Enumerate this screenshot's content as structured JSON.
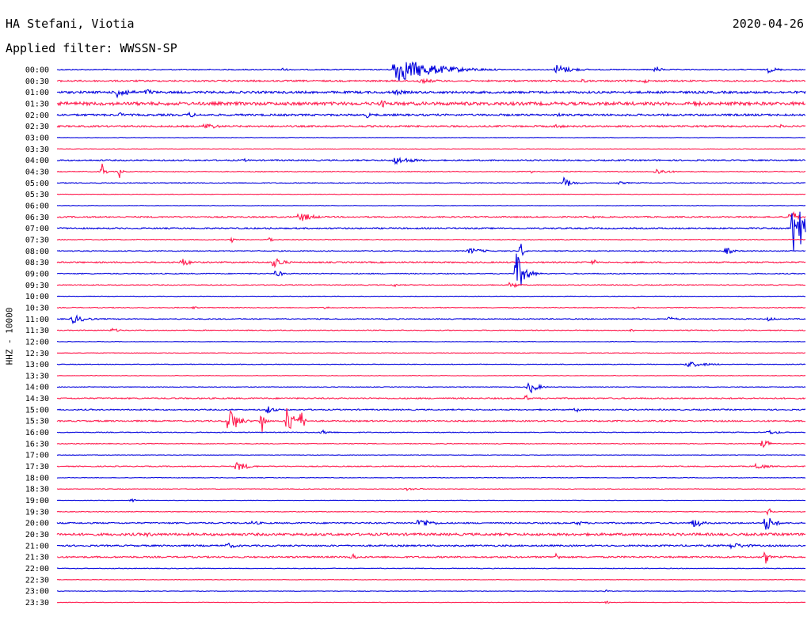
{
  "header": {
    "station": "HA Stefani, Viotia",
    "date": "2020-04-26",
    "filter": "Applied filter: WWSSN-SP"
  },
  "chart_data": {
    "type": "line",
    "title": "HA Stefani, Viotia",
    "ylabel": "HHZ - 10000",
    "row_colors": [
      "#0000dd",
      "#ff1a4d"
    ],
    "x_range_minutes": [
      0,
      30
    ],
    "rows": [
      {
        "label": "00:00",
        "noise": 0.6,
        "events": [
          {
            "t": 13.5,
            "a": 18,
            "d": 1.4
          },
          {
            "t": 20.0,
            "a": 7,
            "d": 0.6
          },
          {
            "t": 24.0,
            "a": 5,
            "d": 0.2
          },
          {
            "t": 28.5,
            "a": 4,
            "d": 0.4
          },
          {
            "t": 9.0,
            "a": 3,
            "d": 0.2
          }
        ]
      },
      {
        "label": "00:30",
        "noise": 1.0,
        "events": [
          {
            "t": 14.5,
            "a": 3,
            "d": 1.0
          },
          {
            "t": 21.0,
            "a": 3,
            "d": 0.3
          },
          {
            "t": 23.5,
            "a": 3,
            "d": 0.3
          }
        ]
      },
      {
        "label": "01:00",
        "noise": 1.4,
        "events": [
          {
            "t": 2.4,
            "a": 8,
            "d": 0.5
          },
          {
            "t": 3.6,
            "a": 5,
            "d": 0.3
          },
          {
            "t": 13.5,
            "a": 4,
            "d": 0.5
          }
        ]
      },
      {
        "label": "01:30",
        "noise": 2.0,
        "events": [
          {
            "t": 13.0,
            "a": 5,
            "d": 0.4
          },
          {
            "t": 25.5,
            "a": 4,
            "d": 0.5
          }
        ]
      },
      {
        "label": "02:00",
        "noise": 1.2,
        "events": [
          {
            "t": 2.5,
            "a": 4,
            "d": 0.2
          },
          {
            "t": 5.3,
            "a": 4,
            "d": 0.3
          },
          {
            "t": 12.4,
            "a": 4,
            "d": 0.3
          },
          {
            "t": 20.0,
            "a": 3,
            "d": 0.3
          }
        ]
      },
      {
        "label": "02:30",
        "noise": 1.0,
        "events": [
          {
            "t": 5.9,
            "a": 5,
            "d": 0.5
          },
          {
            "t": 20.0,
            "a": 3,
            "d": 0.4
          },
          {
            "t": 29.0,
            "a": 3,
            "d": 0.1
          }
        ]
      },
      {
        "label": "03:00",
        "noise": 0.3,
        "events": []
      },
      {
        "label": "03:30",
        "noise": 0.3,
        "events": []
      },
      {
        "label": "04:00",
        "noise": 0.8,
        "events": [
          {
            "t": 13.5,
            "a": 5,
            "d": 0.8
          },
          {
            "t": 7.5,
            "a": 2,
            "d": 0.3
          }
        ]
      },
      {
        "label": "04:30",
        "noise": 0.5,
        "events": [
          {
            "t": 1.8,
            "a": 14,
            "d": 0.1
          },
          {
            "t": 2.5,
            "a": 9,
            "d": 0.1
          },
          {
            "t": 24.0,
            "a": 4,
            "d": 0.5
          },
          {
            "t": 19.0,
            "a": 3,
            "d": 0.1
          }
        ]
      },
      {
        "label": "05:00",
        "noise": 0.5,
        "events": [
          {
            "t": 20.3,
            "a": 8,
            "d": 0.3
          },
          {
            "t": 22.5,
            "a": 2,
            "d": 0.4
          }
        ]
      },
      {
        "label": "05:30",
        "noise": 0.3,
        "events": []
      },
      {
        "label": "06:00",
        "noise": 0.3,
        "events": []
      },
      {
        "label": "06:30",
        "noise": 0.8,
        "events": [
          {
            "t": 9.7,
            "a": 7,
            "d": 0.5
          },
          {
            "t": 29.4,
            "a": 12,
            "d": 0.2
          },
          {
            "t": 21.5,
            "a": 2,
            "d": 0.1
          }
        ]
      },
      {
        "label": "07:00",
        "noise": 0.8,
        "events": [
          {
            "t": 29.5,
            "a": 40,
            "d": 0.5
          },
          {
            "t": 8.5,
            "a": 2,
            "d": 0.1
          }
        ]
      },
      {
        "label": "07:30",
        "noise": 0.5,
        "events": [
          {
            "t": 7.0,
            "a": 4,
            "d": 0.1
          },
          {
            "t": 8.5,
            "a": 6,
            "d": 0.1
          }
        ]
      },
      {
        "label": "08:00",
        "noise": 0.6,
        "events": [
          {
            "t": 16.5,
            "a": 4,
            "d": 0.6
          },
          {
            "t": 18.6,
            "a": 12,
            "d": 0.1
          },
          {
            "t": 26.8,
            "a": 5,
            "d": 0.3
          }
        ]
      },
      {
        "label": "08:30",
        "noise": 0.8,
        "events": [
          {
            "t": 5.0,
            "a": 6,
            "d": 0.3
          },
          {
            "t": 8.7,
            "a": 9,
            "d": 0.3
          },
          {
            "t": 21.5,
            "a": 5,
            "d": 0.1
          }
        ]
      },
      {
        "label": "09:00",
        "noise": 0.6,
        "events": [
          {
            "t": 18.4,
            "a": 28,
            "d": 0.3
          },
          {
            "t": 8.8,
            "a": 6,
            "d": 0.2
          }
        ]
      },
      {
        "label": "09:30",
        "noise": 0.5,
        "events": [
          {
            "t": 18.2,
            "a": 6,
            "d": 0.2
          },
          {
            "t": 13.5,
            "a": 4,
            "d": 0.1
          }
        ]
      },
      {
        "label": "10:00",
        "noise": 0.3,
        "events": []
      },
      {
        "label": "10:30",
        "noise": 0.5,
        "events": [
          {
            "t": 5.5,
            "a": 3,
            "d": 0.1
          },
          {
            "t": 10.8,
            "a": 3,
            "d": 0.1
          },
          {
            "t": 23.2,
            "a": 3,
            "d": 0.1
          }
        ]
      },
      {
        "label": "11:00",
        "noise": 0.6,
        "events": [
          {
            "t": 0.6,
            "a": 6,
            "d": 0.5
          },
          {
            "t": 24.5,
            "a": 3,
            "d": 0.4
          },
          {
            "t": 28.5,
            "a": 3,
            "d": 0.3
          }
        ]
      },
      {
        "label": "11:30",
        "noise": 0.5,
        "events": [
          {
            "t": 2.2,
            "a": 3,
            "d": 0.3
          },
          {
            "t": 23.0,
            "a": 4,
            "d": 0.1
          }
        ]
      },
      {
        "label": "12:00",
        "noise": 0.3,
        "events": []
      },
      {
        "label": "12:30",
        "noise": 0.3,
        "events": []
      },
      {
        "label": "13:00",
        "noise": 0.4,
        "events": [
          {
            "t": 25.2,
            "a": 4,
            "d": 0.8
          }
        ]
      },
      {
        "label": "13:30",
        "noise": 0.3,
        "events": []
      },
      {
        "label": "14:00",
        "noise": 0.4,
        "events": [
          {
            "t": 18.9,
            "a": 10,
            "d": 0.3
          }
        ]
      },
      {
        "label": "14:30",
        "noise": 0.8,
        "events": [
          {
            "t": 18.8,
            "a": 6,
            "d": 0.1
          }
        ]
      },
      {
        "label": "15:00",
        "noise": 0.8,
        "events": [
          {
            "t": 8.4,
            "a": 6,
            "d": 0.3
          },
          {
            "t": 20.8,
            "a": 3,
            "d": 0.3
          }
        ]
      },
      {
        "label": "15:30",
        "noise": 0.9,
        "events": [
          {
            "t": 6.9,
            "a": 20,
            "d": 0.3
          },
          {
            "t": 8.2,
            "a": 22,
            "d": 0.1
          },
          {
            "t": 9.2,
            "a": 22,
            "d": 0.3
          },
          {
            "t": 9.8,
            "a": 18,
            "d": 0.1
          }
        ]
      },
      {
        "label": "16:00",
        "noise": 0.5,
        "events": [
          {
            "t": 10.6,
            "a": 3,
            "d": 0.4
          },
          {
            "t": 28.5,
            "a": 3,
            "d": 0.5
          }
        ]
      },
      {
        "label": "16:30",
        "noise": 0.5,
        "events": [
          {
            "t": 28.3,
            "a": 9,
            "d": 0.2
          }
        ]
      },
      {
        "label": "17:00",
        "noise": 0.3,
        "events": []
      },
      {
        "label": "17:30",
        "noise": 0.6,
        "events": [
          {
            "t": 7.2,
            "a": 7,
            "d": 0.4
          },
          {
            "t": 28.0,
            "a": 5,
            "d": 0.4
          }
        ]
      },
      {
        "label": "18:00",
        "noise": 0.4,
        "events": []
      },
      {
        "label": "18:30",
        "noise": 0.4,
        "events": [
          {
            "t": 14.0,
            "a": 2,
            "d": 0.6
          }
        ]
      },
      {
        "label": "19:00",
        "noise": 0.3,
        "events": [
          {
            "t": 3.0,
            "a": 4,
            "d": 0.1
          }
        ]
      },
      {
        "label": "19:30",
        "noise": 0.5,
        "events": [
          {
            "t": 28.5,
            "a": 14,
            "d": 0.1
          }
        ]
      },
      {
        "label": "20:00",
        "noise": 0.9,
        "events": [
          {
            "t": 14.5,
            "a": 7,
            "d": 0.5
          },
          {
            "t": 25.5,
            "a": 8,
            "d": 0.3
          },
          {
            "t": 28.4,
            "a": 12,
            "d": 0.3
          },
          {
            "t": 20.8,
            "a": 3,
            "d": 0.5
          },
          {
            "t": 7.8,
            "a": 3,
            "d": 0.4
          }
        ]
      },
      {
        "label": "20:30",
        "noise": 1.5,
        "events": [
          {
            "t": 3.5,
            "a": 3,
            "d": 0.8
          }
        ]
      },
      {
        "label": "21:00",
        "noise": 1.0,
        "events": [
          {
            "t": 6.8,
            "a": 4,
            "d": 0.4
          },
          {
            "t": 27.0,
            "a": 4,
            "d": 0.8
          }
        ]
      },
      {
        "label": "21:30",
        "noise": 1.0,
        "events": [
          {
            "t": 11.8,
            "a": 6,
            "d": 0.2
          },
          {
            "t": 20.0,
            "a": 5,
            "d": 0.2
          },
          {
            "t": 28.4,
            "a": 12,
            "d": 0.1
          }
        ]
      },
      {
        "label": "22:00",
        "noise": 0.4,
        "events": []
      },
      {
        "label": "22:30",
        "noise": 0.3,
        "events": []
      },
      {
        "label": "23:00",
        "noise": 0.3,
        "events": [
          {
            "t": 22.0,
            "a": 2,
            "d": 0.1
          }
        ]
      },
      {
        "label": "23:30",
        "noise": 0.3,
        "events": [
          {
            "t": 22.0,
            "a": 3,
            "d": 0.1
          }
        ]
      }
    ]
  }
}
